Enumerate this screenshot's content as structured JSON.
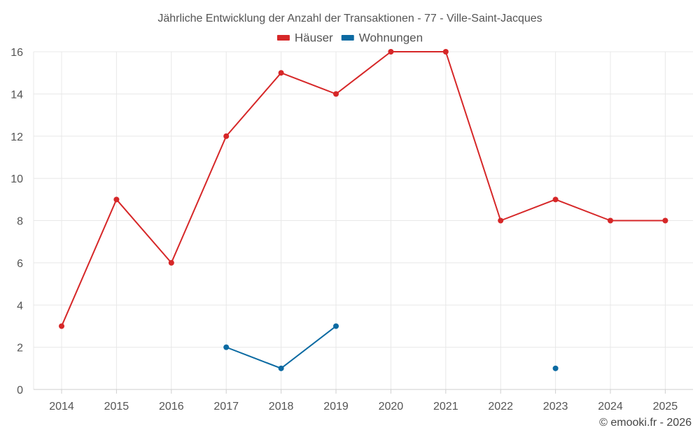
{
  "chart_data": {
    "type": "line",
    "title": "Jährliche Entwicklung der Anzahl der Transaktionen - 77 - Ville-Saint-Jacques",
    "categories": [
      "2014",
      "2015",
      "2016",
      "2017",
      "2018",
      "2019",
      "2020",
      "2021",
      "2022",
      "2023",
      "2024",
      "2025"
    ],
    "ylim": [
      0,
      16
    ],
    "yticks": [
      0,
      2,
      4,
      6,
      8,
      10,
      12,
      14,
      16
    ],
    "grid": true,
    "legend_position": "top-center",
    "series": [
      {
        "name": "Häuser",
        "color": "#d62728",
        "values": [
          3,
          9,
          6,
          12,
          15,
          14,
          16,
          16,
          8,
          9,
          8,
          8
        ]
      },
      {
        "name": "Wohnungen",
        "color": "#0b6aa2",
        "values": [
          null,
          null,
          null,
          2,
          1,
          3,
          null,
          null,
          null,
          1,
          null,
          null
        ]
      }
    ],
    "credit": "© emooki.fr - 2026"
  }
}
